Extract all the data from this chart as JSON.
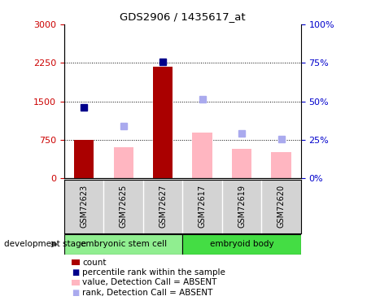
{
  "title": "GDS2906 / 1435617_at",
  "samples": [
    "GSM72623",
    "GSM72625",
    "GSM72627",
    "GSM72617",
    "GSM72619",
    "GSM72620"
  ],
  "count_values": [
    750,
    null,
    2180,
    null,
    null,
    null
  ],
  "count_color": "#AA0000",
  "percentile_values": [
    1380,
    null,
    2270,
    null,
    null,
    null
  ],
  "percentile_color": "#00008B",
  "absent_value_values": [
    null,
    610,
    null,
    900,
    580,
    510
  ],
  "absent_value_color": "#FFB6C1",
  "absent_rank_values": [
    null,
    1020,
    null,
    1550,
    870,
    770
  ],
  "absent_rank_color": "#AAAAEE",
  "ylim_left": [
    0,
    3000
  ],
  "ylim_right": [
    0,
    100
  ],
  "yticks_left": [
    0,
    750,
    1500,
    2250,
    3000
  ],
  "yticks_right": [
    0,
    25,
    50,
    75,
    100
  ],
  "ylabel_left_color": "#CC0000",
  "ylabel_right_color": "#0000CC",
  "bar_width": 0.5,
  "marker_size": 6,
  "background_color": "#FFFFFF",
  "plot_bg_color": "#FFFFFF",
  "label_area_color": "#D3D3D3",
  "embryonic_color": "#90EE90",
  "embryoid_color": "#44DD44",
  "group1_label": "embryonic stem cell",
  "group2_label": "embryoid body",
  "dev_stage_label": "development stage",
  "legend_items": [
    {
      "color": "#AA0000",
      "label": "count",
      "style": "rect"
    },
    {
      "color": "#00008B",
      "label": "percentile rank within the sample",
      "style": "square"
    },
    {
      "color": "#FFB6C1",
      "label": "value, Detection Call = ABSENT",
      "style": "rect"
    },
    {
      "color": "#AAAAEE",
      "label": "rank, Detection Call = ABSENT",
      "style": "square"
    }
  ]
}
